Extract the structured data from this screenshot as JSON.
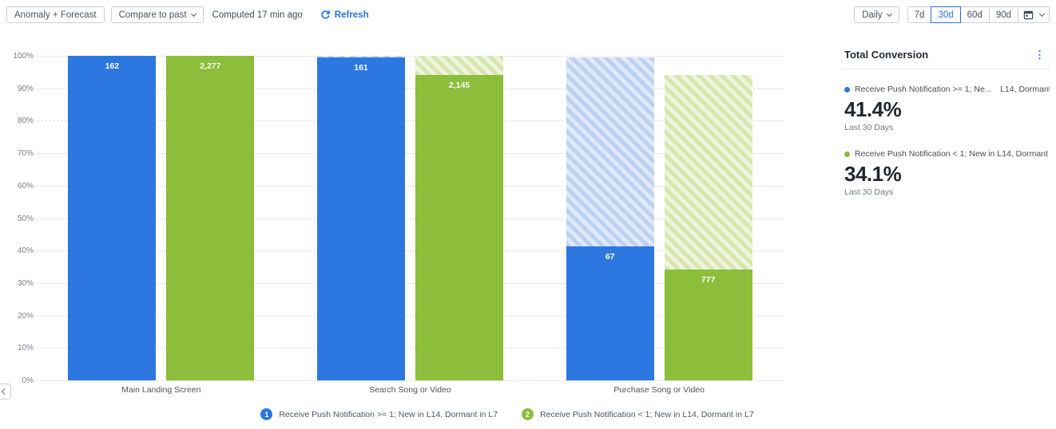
{
  "toolbar": {
    "anomaly_forecast_label": "Anomaly + Forecast",
    "compare_to_past_label": "Compare to past",
    "computed_label": "Computed 17 min ago",
    "refresh_label": "Refresh",
    "granularity_label": "Daily",
    "range_options": [
      "7d",
      "30d",
      "60d",
      "90d"
    ],
    "selected_range": "30d"
  },
  "colors": {
    "series1_blue": "#2d78e0",
    "series2_green": "#8cbd3b",
    "accent_link_blue": "#2472e8",
    "selected_range_blue": "#2b6fdd"
  },
  "panel": {
    "title": "Total Conversion",
    "entries": [
      {
        "label": "Receive Push Notification >= 1; Ne... L14, Dormant in L7",
        "value": "41.4%",
        "sub": "Last 30 Days",
        "color": "#2d78e0"
      },
      {
        "label": "Receive Push Notification < 1; New in L14, Dormant in L7",
        "value": "34.1%",
        "sub": "Last 30 Days",
        "color": "#8cbd3b"
      }
    ]
  },
  "legend": [
    {
      "num": "1",
      "label": "Receive Push Notification >= 1; New in L14, Dormant in L7",
      "color": "#2d78e0"
    },
    {
      "num": "2",
      "label": "Receive Push Notification < 1; New in L14, Dormant in L7",
      "color": "#8cbd3b"
    }
  ],
  "chart_data": {
    "type": "bar",
    "subtype": "funnel-conversion",
    "categories": [
      "Main Landing Screen",
      "Search Song or Video",
      "Purchase Song or Video"
    ],
    "series": [
      {
        "name": "Receive Push Notification >= 1; New in L14, Dormant in L7",
        "color": "#2d78e0",
        "hatch_colors": [
          "#bcd1f2",
          "#dfe9fa"
        ],
        "conversion_pct": [
          100,
          99.4,
          41.4
        ],
        "counts": [
          162,
          161,
          67
        ],
        "count_labels": [
          "162",
          "161",
          "67"
        ]
      },
      {
        "name": "Receive Push Notification < 1; New in L14, Dormant in L7",
        "color": "#8cbd3b",
        "hatch_colors": [
          "#d7e6ad",
          "#eef4dd"
        ],
        "conversion_pct": [
          100,
          94.2,
          34.1
        ],
        "counts": [
          2277,
          2145,
          777
        ],
        "count_labels": [
          "2,277",
          "2,145",
          "777"
        ]
      }
    ],
    "ylabel_ticks": [
      "0%",
      "10%",
      "20%",
      "30%",
      "40%",
      "50%",
      "60%",
      "70%",
      "80%",
      "90%",
      "100%"
    ],
    "ylim": [
      0,
      100
    ],
    "grid": "horizontal-dashed",
    "legend_position": "bottom",
    "note": "hatched region above each solid bar shows drop-off from previous funnel step"
  }
}
